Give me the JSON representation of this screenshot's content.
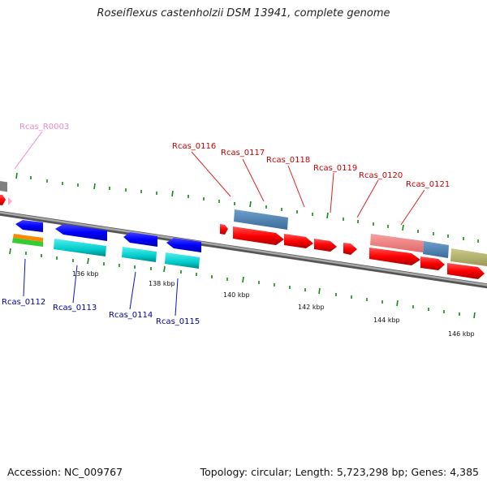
{
  "title": "Roseiflexus castenholzii DSM 13941, complete genome",
  "footer": {
    "accession": "Accession: NC_009767",
    "info": "Topology: circular; Length: 5,723,298 bp; Genes: 4,385"
  },
  "ticks": [
    "136 kbp",
    "138 kbp",
    "140 kbp",
    "142 kbp",
    "144 kbp",
    "146 kbp"
  ],
  "labels_top": {
    "rna": "Rcas_R0003",
    "g116": "Rcas_0116",
    "g117": "Rcas_0117",
    "g118": "Rcas_0118",
    "g119": "Rcas_0119",
    "g120": "Rcas_0120",
    "g121": "Rcas_0121"
  },
  "labels_bottom": {
    "g112": "Rcas_0112",
    "g113": "Rcas_0113",
    "g114": "Rcas_0114",
    "g115": "Rcas_0115"
  },
  "colors": {
    "forward_cds": "#ff0000",
    "reverse_cds": "#0000ff",
    "top_label": "#cc0000",
    "bottom_label": "#0000aa",
    "rna_label": "#ee88cc",
    "backbone": "#808080",
    "tick": "#118811"
  }
}
